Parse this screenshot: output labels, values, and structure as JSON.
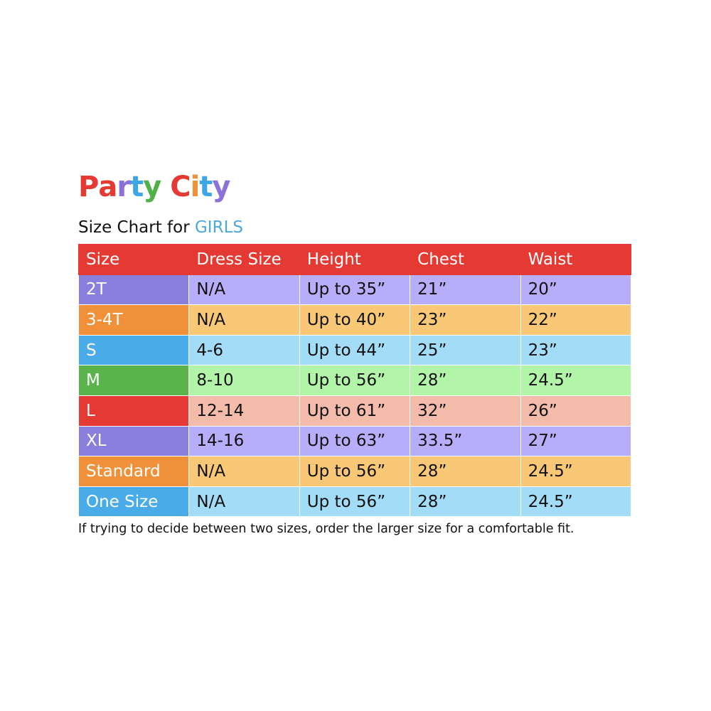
{
  "logo": {
    "text": "Party City",
    "letters": [
      {
        "c": "P",
        "color": "#e53a33"
      },
      {
        "c": "a",
        "color": "#e53a33"
      },
      {
        "c": "r",
        "color": "#8a72d8"
      },
      {
        "c": "t",
        "color": "#3ea6e6"
      },
      {
        "c": "y",
        "color": "#52b04a"
      },
      {
        "c": " ",
        "color": "#fff"
      },
      {
        "c": "C",
        "color": "#e53a33"
      },
      {
        "c": "i",
        "color": "#f0913a"
      },
      {
        "c": "t",
        "color": "#3ea6e6"
      },
      {
        "c": "y",
        "color": "#8a72d8"
      }
    ]
  },
  "subtitle": {
    "prefix": "Size Chart for ",
    "highlight": "GIRLS"
  },
  "table": {
    "headers": [
      "Size",
      "Dress Size",
      "Height",
      "Chest",
      "Waist"
    ],
    "rows": [
      {
        "cells": [
          "2T",
          "N/A",
          "Up to 35”",
          "21”",
          "20”"
        ],
        "dark": "#8a7fdc",
        "light": "#b8adf9"
      },
      {
        "cells": [
          "3-4T",
          "N/A",
          "Up to 40”",
          "23”",
          "22”"
        ],
        "dark": "#f0913a",
        "light": "#f9c877"
      },
      {
        "cells": [
          "S",
          "4-6",
          "Up to 44”",
          "25”",
          "23”"
        ],
        "dark": "#4aabe9",
        "light": "#a3dcf7"
      },
      {
        "cells": [
          "M",
          "8-10",
          "Up to 56”",
          "28”",
          "24.5”"
        ],
        "dark": "#5bb34c",
        "light": "#b2f5a8"
      },
      {
        "cells": [
          "L",
          "12-14",
          "Up to 61”",
          "32”",
          "26”"
        ],
        "dark": "#e53a33",
        "light": "#f2bbaa"
      },
      {
        "cells": [
          "XL",
          "14-16",
          "Up to 63”",
          "33.5”",
          "27”"
        ],
        "dark": "#8a7fdc",
        "light": "#b8adf9"
      },
      {
        "cells": [
          "Standard",
          "N/A",
          "Up to 56”",
          "28”",
          "24.5”"
        ],
        "dark": "#f0913a",
        "light": "#f9c877"
      },
      {
        "cells": [
          "One Size",
          "N/A",
          "Up to 56”",
          "28”",
          "24.5”"
        ],
        "dark": "#4aabe9",
        "light": "#a3dcf7"
      }
    ]
  },
  "note": "If trying to decide between two sizes, order the larger size for a comfortable fit."
}
